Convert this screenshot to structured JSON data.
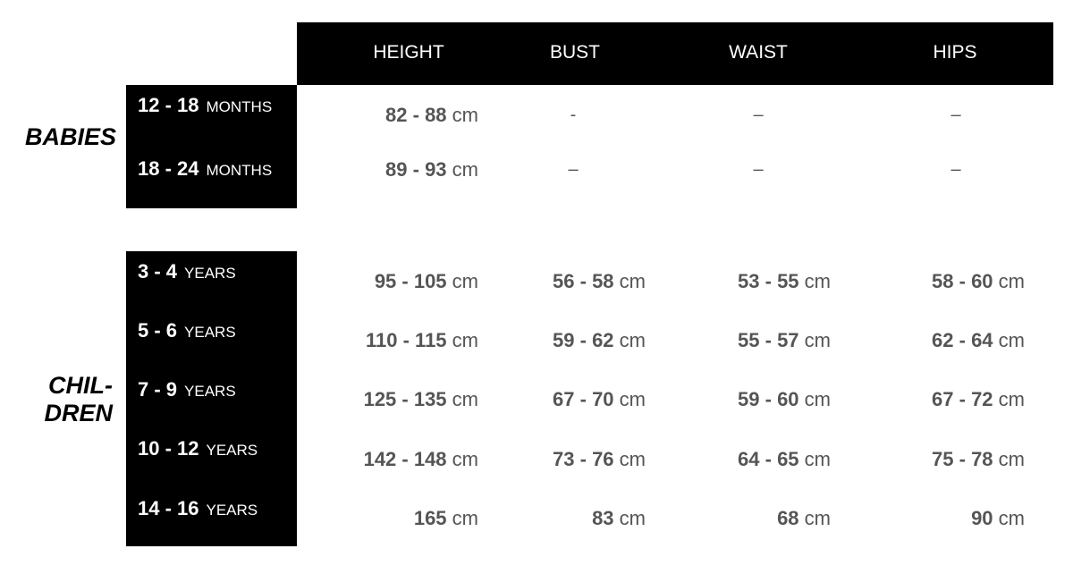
{
  "headers": [
    "HEIGHT",
    "BUST",
    "WAIST",
    "HIPS"
  ],
  "groups": {
    "babies": {
      "label": "BABIES",
      "rows": [
        {
          "range": "12 - 18",
          "unit": "MONTHS",
          "values": [
            "82 - 88",
            "-",
            "–",
            "–"
          ]
        },
        {
          "range": "18 - 24",
          "unit": "MONTHS",
          "values": [
            "89 - 93",
            "–",
            "–",
            "–"
          ]
        }
      ]
    },
    "children": {
      "label_line1": "CHIL-",
      "label_line2": "DREN",
      "rows": [
        {
          "range": "3 - 4",
          "unit": "YEARS",
          "values": [
            "95 - 105",
            "56 - 58",
            "53 - 55",
            "58 - 60"
          ]
        },
        {
          "range": "5 - 6",
          "unit": "YEARS",
          "values": [
            "110 - 115",
            "59 - 62",
            "55 - 57",
            "62 - 64"
          ]
        },
        {
          "range": "7 - 9",
          "unit": "YEARS",
          "values": [
            "125 - 135",
            "67 - 70",
            "59 - 60",
            "67 - 72"
          ]
        },
        {
          "range": "10 - 12",
          "unit": "YEARS",
          "values": [
            "142 - 148",
            "73 - 76",
            "64 - 65",
            "75 - 78"
          ]
        },
        {
          "range": "14 - 16",
          "unit": "YEARS",
          "values": [
            "165",
            "83",
            "68",
            "90"
          ]
        }
      ]
    }
  },
  "unit": "cm",
  "colors": {
    "header_bg": "#000000",
    "value_text": "#555555"
  }
}
